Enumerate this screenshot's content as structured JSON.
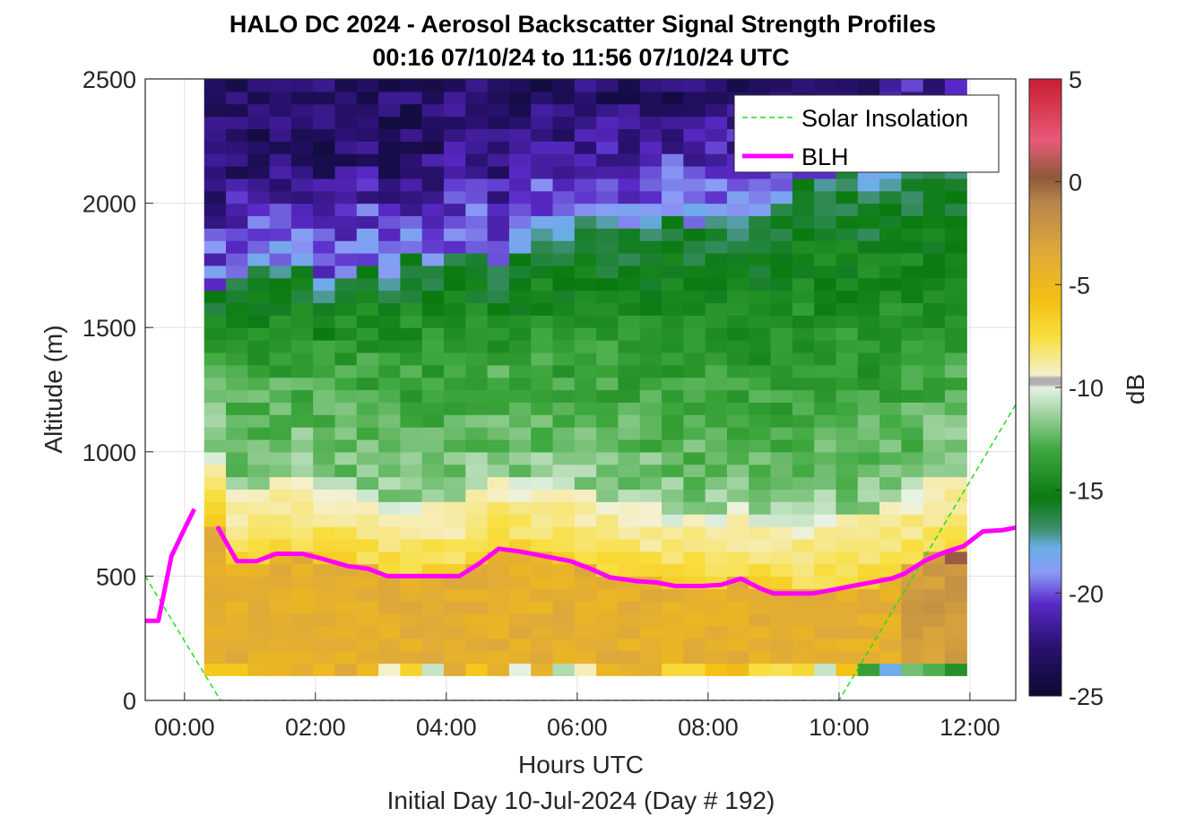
{
  "chart_data": {
    "type": "heatmap",
    "title": "HALO DC 2024 - Aerosol Backscatter Signal Strength Profiles",
    "subtitle": "00:16 07/10/24 to 11:56 07/10/24  UTC",
    "xlabel": "Hours UTC",
    "ylabel": "Altitude (m)",
    "footer": "Initial Day 10-Jul-2024 (Day # 192)",
    "xlim": [
      -0.6,
      12.7
    ],
    "ylim": [
      0,
      2500
    ],
    "x_ticks": [
      "00:00",
      "02:00",
      "04:00",
      "06:00",
      "08:00",
      "10:00",
      "12:00"
    ],
    "x_tick_values": [
      0,
      2,
      4,
      6,
      8,
      10,
      12
    ],
    "y_ticks": [
      "0",
      "500",
      "1000",
      "1500",
      "2000",
      "2500"
    ],
    "y_tick_values": [
      0,
      500,
      1000,
      1500,
      2000,
      2500
    ],
    "grid": true,
    "legend_placement": "top-right",
    "colorbar": {
      "label": "dB",
      "ticks": [
        "5",
        "0",
        "-5",
        "-10",
        "-15",
        "-20",
        "-25"
      ],
      "tick_values": [
        5,
        0,
        -5,
        -10,
        -15,
        -20,
        -25
      ],
      "range": [
        -25,
        5
      ]
    },
    "heatmap": {
      "x_start": 0.3,
      "x_end": 11.95,
      "y_start": 100,
      "y_end": 2500,
      "bin_height": 50
    },
    "series": [
      {
        "name": "Solar Insolation",
        "style": "dashed",
        "color": "#22dd22",
        "x": [
          -0.6,
          0.55,
          10.0,
          12.7
        ],
        "y": [
          500,
          0,
          0,
          1190
        ]
      },
      {
        "name": "BLH",
        "style": "solid",
        "color": "#ff00ff",
        "segments": [
          {
            "x": [
              -0.6,
              -0.4,
              -0.2,
              0.0,
              0.15
            ],
            "y": [
              320,
              320,
              580,
              690,
              770
            ]
          },
          {
            "x": [
              0.5,
              0.8,
              1.1,
              1.4,
              1.8,
              2.1,
              2.5,
              2.8,
              3.1,
              3.5,
              3.9,
              4.2,
              4.5,
              4.8,
              5.1,
              5.5,
              5.9,
              6.2,
              6.5,
              6.9,
              7.2,
              7.5,
              7.9,
              8.2,
              8.5,
              8.8,
              9.0,
              9.3,
              9.6,
              9.9,
              10.2,
              10.5,
              10.8,
              11.0,
              11.3,
              11.6,
              11.9,
              12.2,
              12.5,
              12.7
            ],
            "y": [
              700,
              560,
              560,
              590,
              590,
              570,
              540,
              530,
              500,
              500,
              500,
              500,
              550,
              610,
              600,
              580,
              560,
              530,
              495,
              480,
              475,
              460,
              460,
              465,
              490,
              450,
              430,
              430,
              430,
              445,
              460,
              475,
              490,
              510,
              560,
              595,
              620,
              680,
              685,
              695
            ]
          }
        ]
      }
    ]
  }
}
